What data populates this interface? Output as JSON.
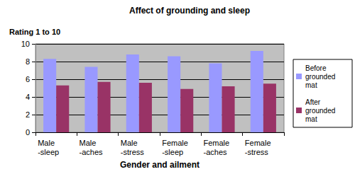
{
  "chart_data": {
    "type": "bar",
    "title": "Affect of grounding and sleep",
    "y_label": "Rating 1 to 10",
    "x_label": "Gender and ailment",
    "categories": [
      "Male -sleep",
      "Male -aches",
      "Male -stress",
      "Female -sleep",
      "Female -aches",
      "Female -stress"
    ],
    "series": [
      {
        "name": "Before grounded mat",
        "color": "#9999ff",
        "values": [
          8.3,
          7.4,
          8.8,
          8.6,
          7.8,
          9.2
        ]
      },
      {
        "name": "After grounded mat",
        "color": "#993366",
        "values": [
          5.3,
          5.7,
          5.6,
          4.9,
          5.2,
          5.5
        ]
      }
    ],
    "ylim": [
      0,
      10
    ],
    "yticks": [
      0,
      2,
      4,
      6,
      8,
      10
    ],
    "grid": true,
    "legend": "right"
  }
}
